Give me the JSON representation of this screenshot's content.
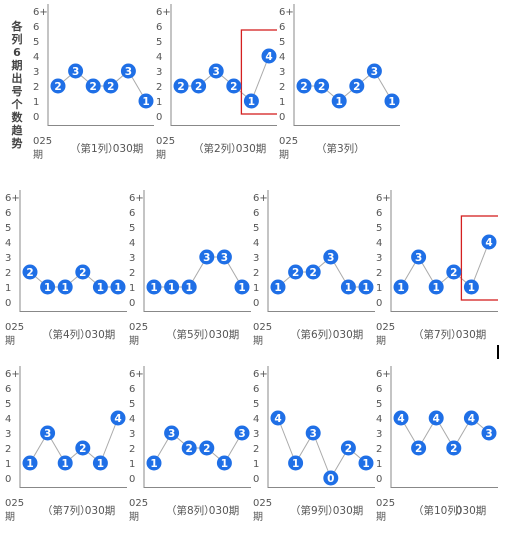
{
  "page_title": "各列6期出号个数趋势",
  "colors": {
    "point": "#1f6fe6",
    "line": "#aaaaaa",
    "highlight": "#d42020",
    "axis": "#888888",
    "text": "#555555"
  },
  "chart_data": [
    {
      "type": "line",
      "title": "（第1列）",
      "x_start": "025期",
      "x_end": "030期",
      "y_ticks": [
        "0",
        "1",
        "2",
        "3",
        "4",
        "5",
        "6",
        "6+"
      ],
      "values": [
        2,
        3,
        2,
        2,
        3,
        1
      ],
      "highlight_last": false
    },
    {
      "type": "line",
      "title": "（第2列）",
      "x_start": "025期",
      "x_end": "030期",
      "y_ticks": [
        "0",
        "1",
        "2",
        "3",
        "4",
        "5",
        "6",
        "6+"
      ],
      "values": [
        2,
        2,
        3,
        2,
        1,
        4
      ],
      "highlight_last": true
    },
    {
      "type": "line",
      "title": "（第3列）",
      "x_start": "025期",
      "x_end": "",
      "y_ticks": [
        "0",
        "1",
        "2",
        "3",
        "4",
        "5",
        "6",
        "6+"
      ],
      "values": [
        2,
        2,
        1,
        2,
        3,
        1
      ],
      "highlight_last": false
    },
    {
      "type": "line",
      "title": "（第4列）",
      "x_start": "025期",
      "x_end": "030期",
      "y_ticks": [
        "0",
        "1",
        "2",
        "3",
        "4",
        "5",
        "6",
        "6+"
      ],
      "values": [
        2,
        1,
        1,
        2,
        1,
        1
      ],
      "highlight_last": false
    },
    {
      "type": "line",
      "title": "（第5列）",
      "x_start": "025期",
      "x_end": "030期",
      "y_ticks": [
        "0",
        "1",
        "2",
        "3",
        "4",
        "5",
        "6",
        "6+"
      ],
      "values": [
        1,
        1,
        1,
        3,
        3,
        1
      ],
      "highlight_last": false
    },
    {
      "type": "line",
      "title": "（第6列）",
      "x_start": "025期",
      "x_end": "030期",
      "y_ticks": [
        "0",
        "1",
        "2",
        "3",
        "4",
        "5",
        "6",
        "6+"
      ],
      "values": [
        1,
        2,
        2,
        3,
        1,
        1
      ],
      "highlight_last": false
    },
    {
      "type": "line",
      "title": "（第7列）",
      "x_start": "025期",
      "x_end": "030期",
      "y_ticks": [
        "0",
        "1",
        "2",
        "3",
        "4",
        "5",
        "6",
        "6+"
      ],
      "values": [
        1,
        3,
        1,
        2,
        1,
        4
      ],
      "highlight_last": true
    },
    {
      "type": "line",
      "title": "（第7列）",
      "x_start": "025期",
      "x_end": "030期",
      "y_ticks": [
        "0",
        "1",
        "2",
        "3",
        "4",
        "5",
        "6",
        "6+"
      ],
      "values": [
        1,
        3,
        1,
        2,
        1,
        4
      ],
      "highlight_last": false
    },
    {
      "type": "line",
      "title": "（第8列）",
      "x_start": "025期",
      "x_end": "030期",
      "y_ticks": [
        "0",
        "1",
        "2",
        "3",
        "4",
        "5",
        "6",
        "6+"
      ],
      "values": [
        1,
        3,
        2,
        2,
        1,
        3
      ],
      "highlight_last": false
    },
    {
      "type": "line",
      "title": "（第9列）",
      "x_start": "025期",
      "x_end": "030期",
      "y_ticks": [
        "0",
        "1",
        "2",
        "3",
        "4",
        "5",
        "6",
        "6+"
      ],
      "values": [
        4,
        1,
        3,
        0,
        2,
        1
      ],
      "highlight_last": false
    },
    {
      "type": "line",
      "title": "（第10列）",
      "x_start": "025期",
      "x_end": "030期",
      "y_ticks": [
        "0",
        "1",
        "2",
        "3",
        "4",
        "5",
        "6",
        "6+"
      ],
      "values": [
        4,
        2,
        4,
        2,
        4,
        3
      ],
      "highlight_last": false
    }
  ]
}
